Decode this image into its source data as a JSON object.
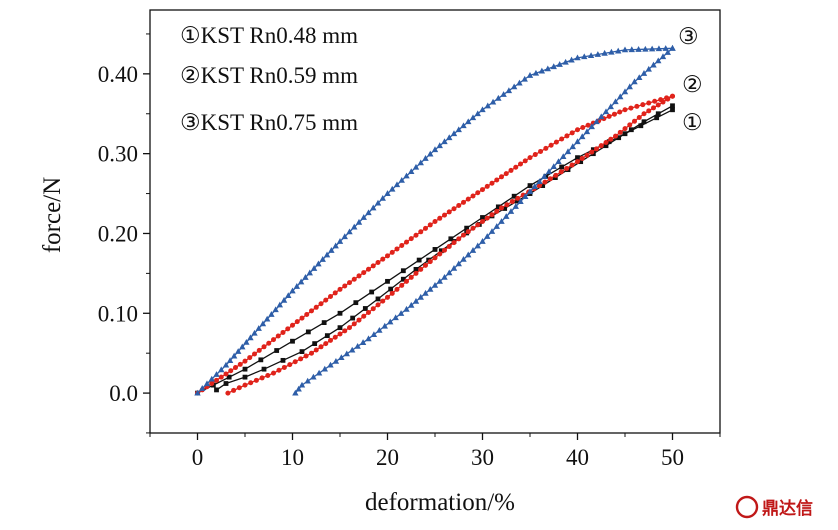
{
  "chart_data": {
    "type": "line",
    "xlabel": "deformation/%",
    "ylabel": "force/N",
    "xlim": [
      -5,
      55
    ],
    "ylim": [
      -0.05,
      0.48
    ],
    "xticks": [
      0,
      10,
      20,
      30,
      40,
      50
    ],
    "xtick_labels": [
      "0",
      "10",
      "20",
      "30",
      "40",
      "50"
    ],
    "yticks": [
      0.0,
      0.1,
      0.2,
      0.3,
      0.4
    ],
    "ytick_labels": [
      "0.0",
      "0.10",
      "0.20",
      "0.30",
      "0.40"
    ],
    "grid": false,
    "legend_position": "top-left",
    "series": [
      {
        "name": "①KST Rn0.48 mm",
        "tag": "①",
        "color": "#111111",
        "marker": "square",
        "loading": [
          [
            0,
            0.0
          ],
          [
            5,
            0.03
          ],
          [
            10,
            0.065
          ],
          [
            15,
            0.1
          ],
          [
            20,
            0.14
          ],
          [
            25,
            0.18
          ],
          [
            30,
            0.22
          ],
          [
            35,
            0.26
          ],
          [
            40,
            0.295
          ],
          [
            45,
            0.325
          ],
          [
            50,
            0.355
          ]
        ],
        "unloading": [
          [
            50,
            0.36
          ],
          [
            47,
            0.34
          ],
          [
            43,
            0.31
          ],
          [
            39,
            0.28
          ],
          [
            35,
            0.25
          ],
          [
            31,
            0.222
          ],
          [
            27,
            0.19
          ],
          [
            23,
            0.155
          ],
          [
            19,
            0.118
          ],
          [
            15,
            0.082
          ],
          [
            11,
            0.052
          ],
          [
            7,
            0.03
          ],
          [
            5,
            0.02
          ],
          [
            3,
            0.012
          ],
          [
            2,
            0.004
          ]
        ]
      },
      {
        "name": "②KST Rn0.59 mm",
        "tag": "②",
        "color": "#e0231b",
        "marker": "circle",
        "loading": [
          [
            0,
            0.0
          ],
          [
            5,
            0.04
          ],
          [
            10,
            0.085
          ],
          [
            15,
            0.13
          ],
          [
            20,
            0.172
          ],
          [
            25,
            0.215
          ],
          [
            30,
            0.255
          ],
          [
            35,
            0.295
          ],
          [
            40,
            0.33
          ],
          [
            45,
            0.355
          ],
          [
            50,
            0.372
          ]
        ],
        "unloading": [
          [
            50,
            0.372
          ],
          [
            47,
            0.35
          ],
          [
            44,
            0.322
          ],
          [
            40,
            0.29
          ],
          [
            36,
            0.26
          ],
          [
            32,
            0.232
          ],
          [
            28,
            0.198
          ],
          [
            24,
            0.16
          ],
          [
            20,
            0.12
          ],
          [
            16,
            0.082
          ],
          [
            12,
            0.05
          ],
          [
            8,
            0.025
          ],
          [
            5,
            0.01
          ],
          [
            3.2,
            0.0
          ]
        ]
      },
      {
        "name": "③KST Rn0.75 mm",
        "tag": "③",
        "color": "#2e5ea8",
        "marker": "triangle",
        "loading": [
          [
            0,
            0.0
          ],
          [
            3,
            0.035
          ],
          [
            6,
            0.075
          ],
          [
            10,
            0.128
          ],
          [
            15,
            0.19
          ],
          [
            20,
            0.25
          ],
          [
            25,
            0.305
          ],
          [
            30,
            0.355
          ],
          [
            35,
            0.398
          ],
          [
            40,
            0.42
          ],
          [
            45,
            0.43
          ],
          [
            50,
            0.432
          ]
        ],
        "unloading": [
          [
            50,
            0.432
          ],
          [
            46,
            0.39
          ],
          [
            42,
            0.34
          ],
          [
            38,
            0.29
          ],
          [
            34,
            0.24
          ],
          [
            30,
            0.19
          ],
          [
            26,
            0.145
          ],
          [
            22,
            0.105
          ],
          [
            18,
            0.068
          ],
          [
            14,
            0.035
          ],
          [
            11,
            0.01
          ],
          [
            10.3,
            0.0
          ]
        ]
      }
    ]
  },
  "watermark": {
    "text": "鼎达信",
    "color": "#c01818"
  }
}
